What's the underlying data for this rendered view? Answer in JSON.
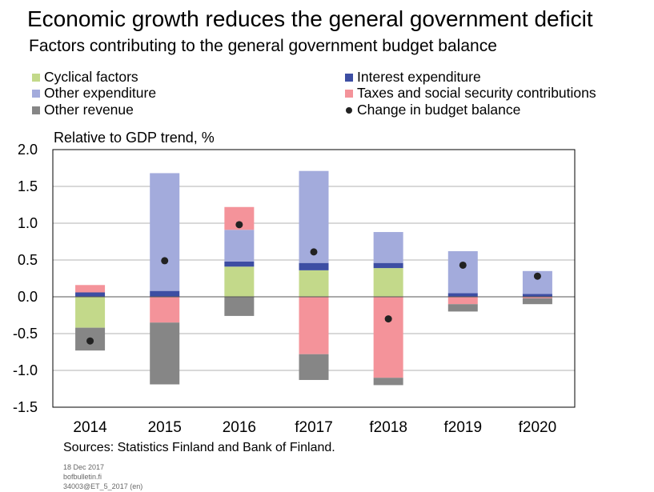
{
  "title": "Economic growth reduces the general government deficit",
  "subtitle": "Factors contributing to the general government budget balance",
  "unit_label": "Relative to GDP trend, %",
  "sources": "Sources: Statistics Finland and Bank of Finland.",
  "footer": {
    "date": "18 Dec 2017",
    "site": "bofbulletin.fi",
    "code": "34003@ET_5_2017 (en)"
  },
  "legend": [
    {
      "label": "Cyclical factors",
      "color": "#c3d98a",
      "marker": "square"
    },
    {
      "label": "Other expenditure",
      "color": "#a3abdc",
      "marker": "square"
    },
    {
      "label": "Other revenue",
      "color": "#868686",
      "marker": "square"
    },
    {
      "label": "Interest expenditure",
      "color": "#3d4ea3",
      "marker": "square"
    },
    {
      "label": "Taxes and social security contributions",
      "color": "#f4939a",
      "marker": "square"
    },
    {
      "label": "Change in budget balance",
      "color": "#222222",
      "marker": "dot"
    }
  ],
  "chart_data": {
    "type": "bar",
    "stacked": true,
    "categories": [
      "2014",
      "2015",
      "2016",
      "f2017",
      "f2018",
      "f2019",
      "f2020"
    ],
    "ylim": [
      -1.5,
      2.0
    ],
    "yticks": [
      "2.0",
      "1.5",
      "1.0",
      "0.5",
      "0.0",
      "-0.5",
      "-1.0",
      "-1.5"
    ],
    "ylabel": "Relative to GDP trend, %",
    "grid": true,
    "series": [
      {
        "name": "Cyclical factors",
        "color": "#c3d98a",
        "values": [
          -0.42,
          0.0,
          0.41,
          0.36,
          0.39,
          0.0,
          0.0
        ]
      },
      {
        "name": "Interest expenditure",
        "color": "#3d4ea3",
        "values": [
          0.06,
          0.08,
          0.07,
          0.1,
          0.07,
          0.05,
          0.04
        ]
      },
      {
        "name": "Other expenditure",
        "color": "#a3abdc",
        "values": [
          0.0,
          1.6,
          0.43,
          1.25,
          0.42,
          0.57,
          0.31
        ]
      },
      {
        "name": "Taxes and social security contributions",
        "color": "#f4939a",
        "values": [
          0.1,
          -0.35,
          0.31,
          -0.78,
          -1.1,
          -0.1,
          -0.02
        ]
      },
      {
        "name": "Other revenue",
        "color": "#868686",
        "values": [
          -0.31,
          -0.84,
          -0.26,
          -0.35,
          -0.1,
          -0.1,
          -0.08
        ]
      }
    ],
    "change_in_budget_balance": {
      "name": "Change in budget balance",
      "color": "#222222",
      "values": [
        -0.6,
        0.49,
        0.98,
        0.61,
        -0.3,
        0.43,
        0.28
      ]
    }
  }
}
